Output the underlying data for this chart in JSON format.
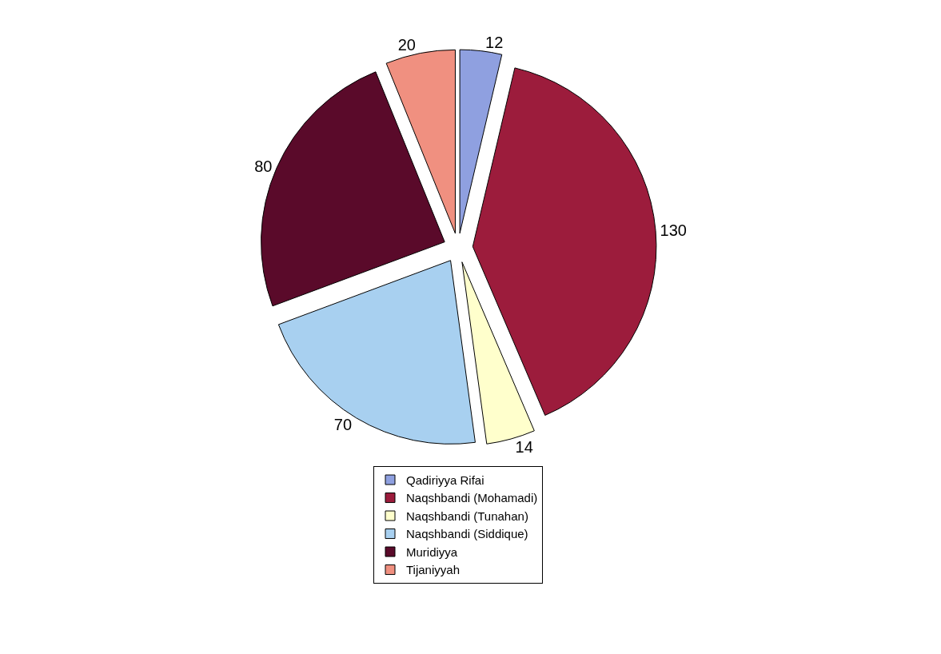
{
  "chart_data": {
    "type": "pie",
    "categories": [
      "Qadiriyya Rifai",
      "Naqshbandi (Mohamadi)",
      "Naqshbandi (Tunahan)",
      "Naqshbandi (Siddique)",
      "Muridiyya",
      "Tijaniyyah"
    ],
    "values": [
      12,
      130,
      14,
      70,
      80,
      20
    ],
    "colors": [
      "#8fa0e0",
      "#9c1c3c",
      "#ffffcc",
      "#a8d0f0",
      "#5a0a2a",
      "#f09080"
    ],
    "data_labels": true,
    "legend": "bottom"
  }
}
